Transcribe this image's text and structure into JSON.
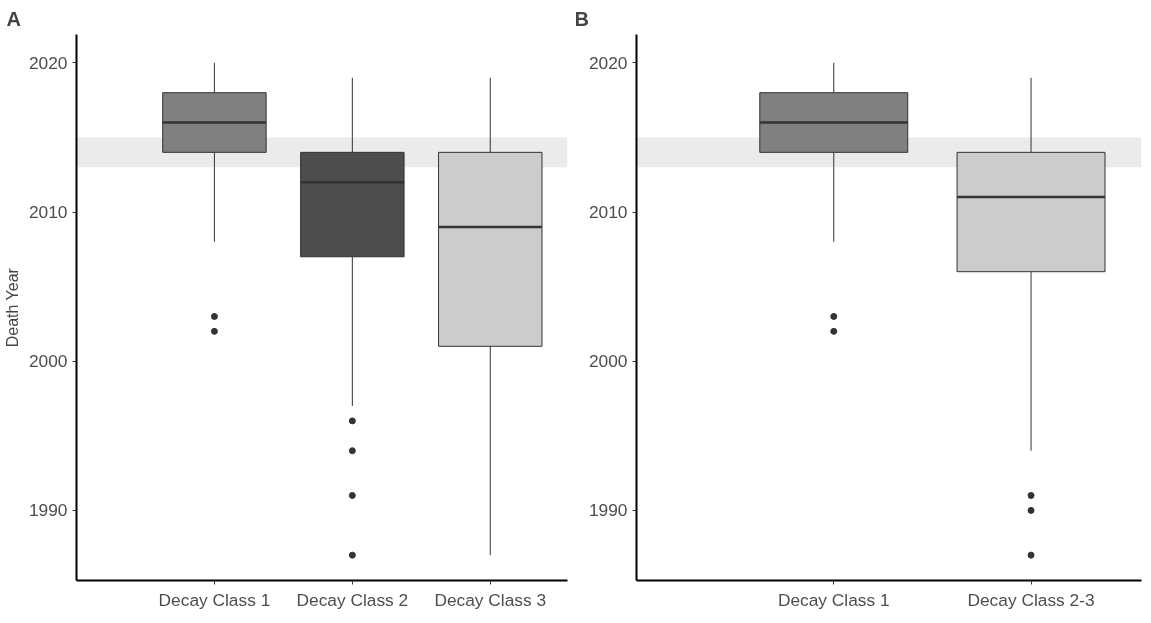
{
  "chart_data": [
    {
      "type": "box",
      "title": "A",
      "ylabel": "Death Year",
      "categories": [
        "Decay Class 1",
        "Decay Class 2",
        "Decay Class 3"
      ],
      "colors": [
        "#808080",
        "#4d4d4d",
        "#cccccc"
      ],
      "ylim": [
        1985.3,
        2021.9
      ],
      "yticks": [
        1990,
        2000,
        2010,
        2020
      ],
      "bands": [
        {
          "axis": "y",
          "from": 2013,
          "to": 2015,
          "color": "#ebebeb"
        }
      ],
      "boxes": [
        {
          "low": 2008,
          "q1": 2014,
          "median": 2016,
          "q3": 2018,
          "high": 2020,
          "outliers": [
            2003,
            2002
          ]
        },
        {
          "low": 1997,
          "q1": 2007,
          "median": 2012,
          "q3": 2014,
          "high": 2019,
          "outliers": [
            1996,
            1994,
            1991,
            1987
          ]
        },
        {
          "low": 1987,
          "q1": 2001,
          "median": 2009,
          "q3": 2014,
          "high": 2019
        }
      ]
    },
    {
      "type": "box",
      "title": "B",
      "categories": [
        "Decay Class 1",
        "Decay Class 2-3"
      ],
      "colors": [
        "#808080",
        "#cccccc"
      ],
      "ylim": [
        1985.3,
        2021.9
      ],
      "yticks": [
        1990,
        2000,
        2010,
        2020
      ],
      "bands": [
        {
          "axis": "y",
          "from": 2013,
          "to": 2015,
          "color": "#ebebeb"
        }
      ],
      "boxes": [
        {
          "low": 2008,
          "q1": 2014,
          "median": 2016,
          "q3": 2018,
          "high": 2020,
          "outliers": [
            2003,
            2002
          ]
        },
        {
          "low": 1994,
          "q1": 2006,
          "median": 2011,
          "q3": 2014,
          "high": 2019,
          "outliers": [
            1991,
            1990,
            1987
          ]
        }
      ]
    }
  ]
}
